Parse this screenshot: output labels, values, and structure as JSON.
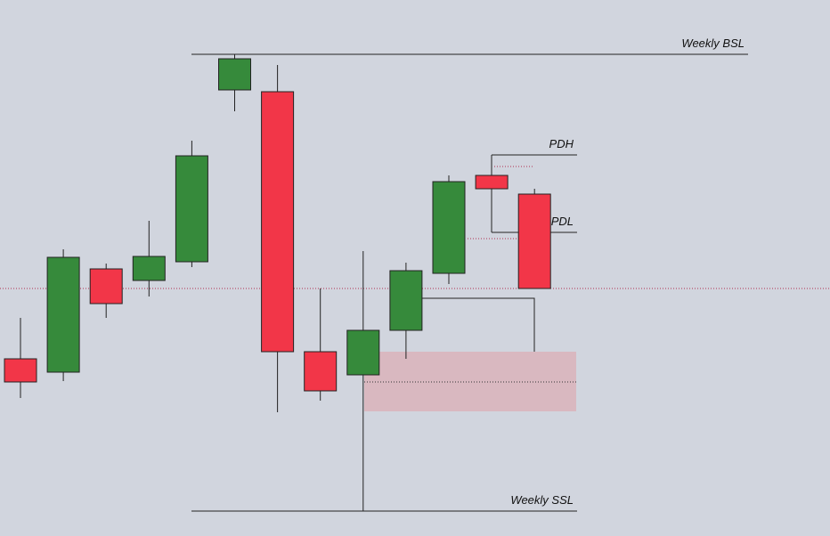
{
  "chart_data": {
    "type": "candlestick",
    "open": [
      199,
      184,
      300,
      287,
      308,
      501,
      499,
      207,
      181,
      231,
      295,
      405,
      384
    ],
    "high": [
      245,
      322,
      306,
      354,
      444,
      541,
      529,
      278,
      320,
      307,
      405,
      405,
      390
    ],
    "low": [
      155,
      174,
      245,
      269,
      302,
      477,
      139,
      152,
      28,
      199,
      283,
      390,
      278
    ],
    "close": [
      173,
      313,
      261,
      314,
      427,
      536,
      207,
      163,
      231,
      298,
      398,
      390,
      278
    ],
    "up_color": "#368a3b",
    "down_color": "#f23648",
    "ylim": [
      0,
      602
    ],
    "levels": [
      {
        "label": "Weekly BSL",
        "value": 541
      },
      {
        "label": "PDH",
        "value": 428
      },
      {
        "label": "PDL",
        "value": 341
      },
      {
        "label": "Weekly SSL",
        "value": 28
      }
    ]
  }
}
